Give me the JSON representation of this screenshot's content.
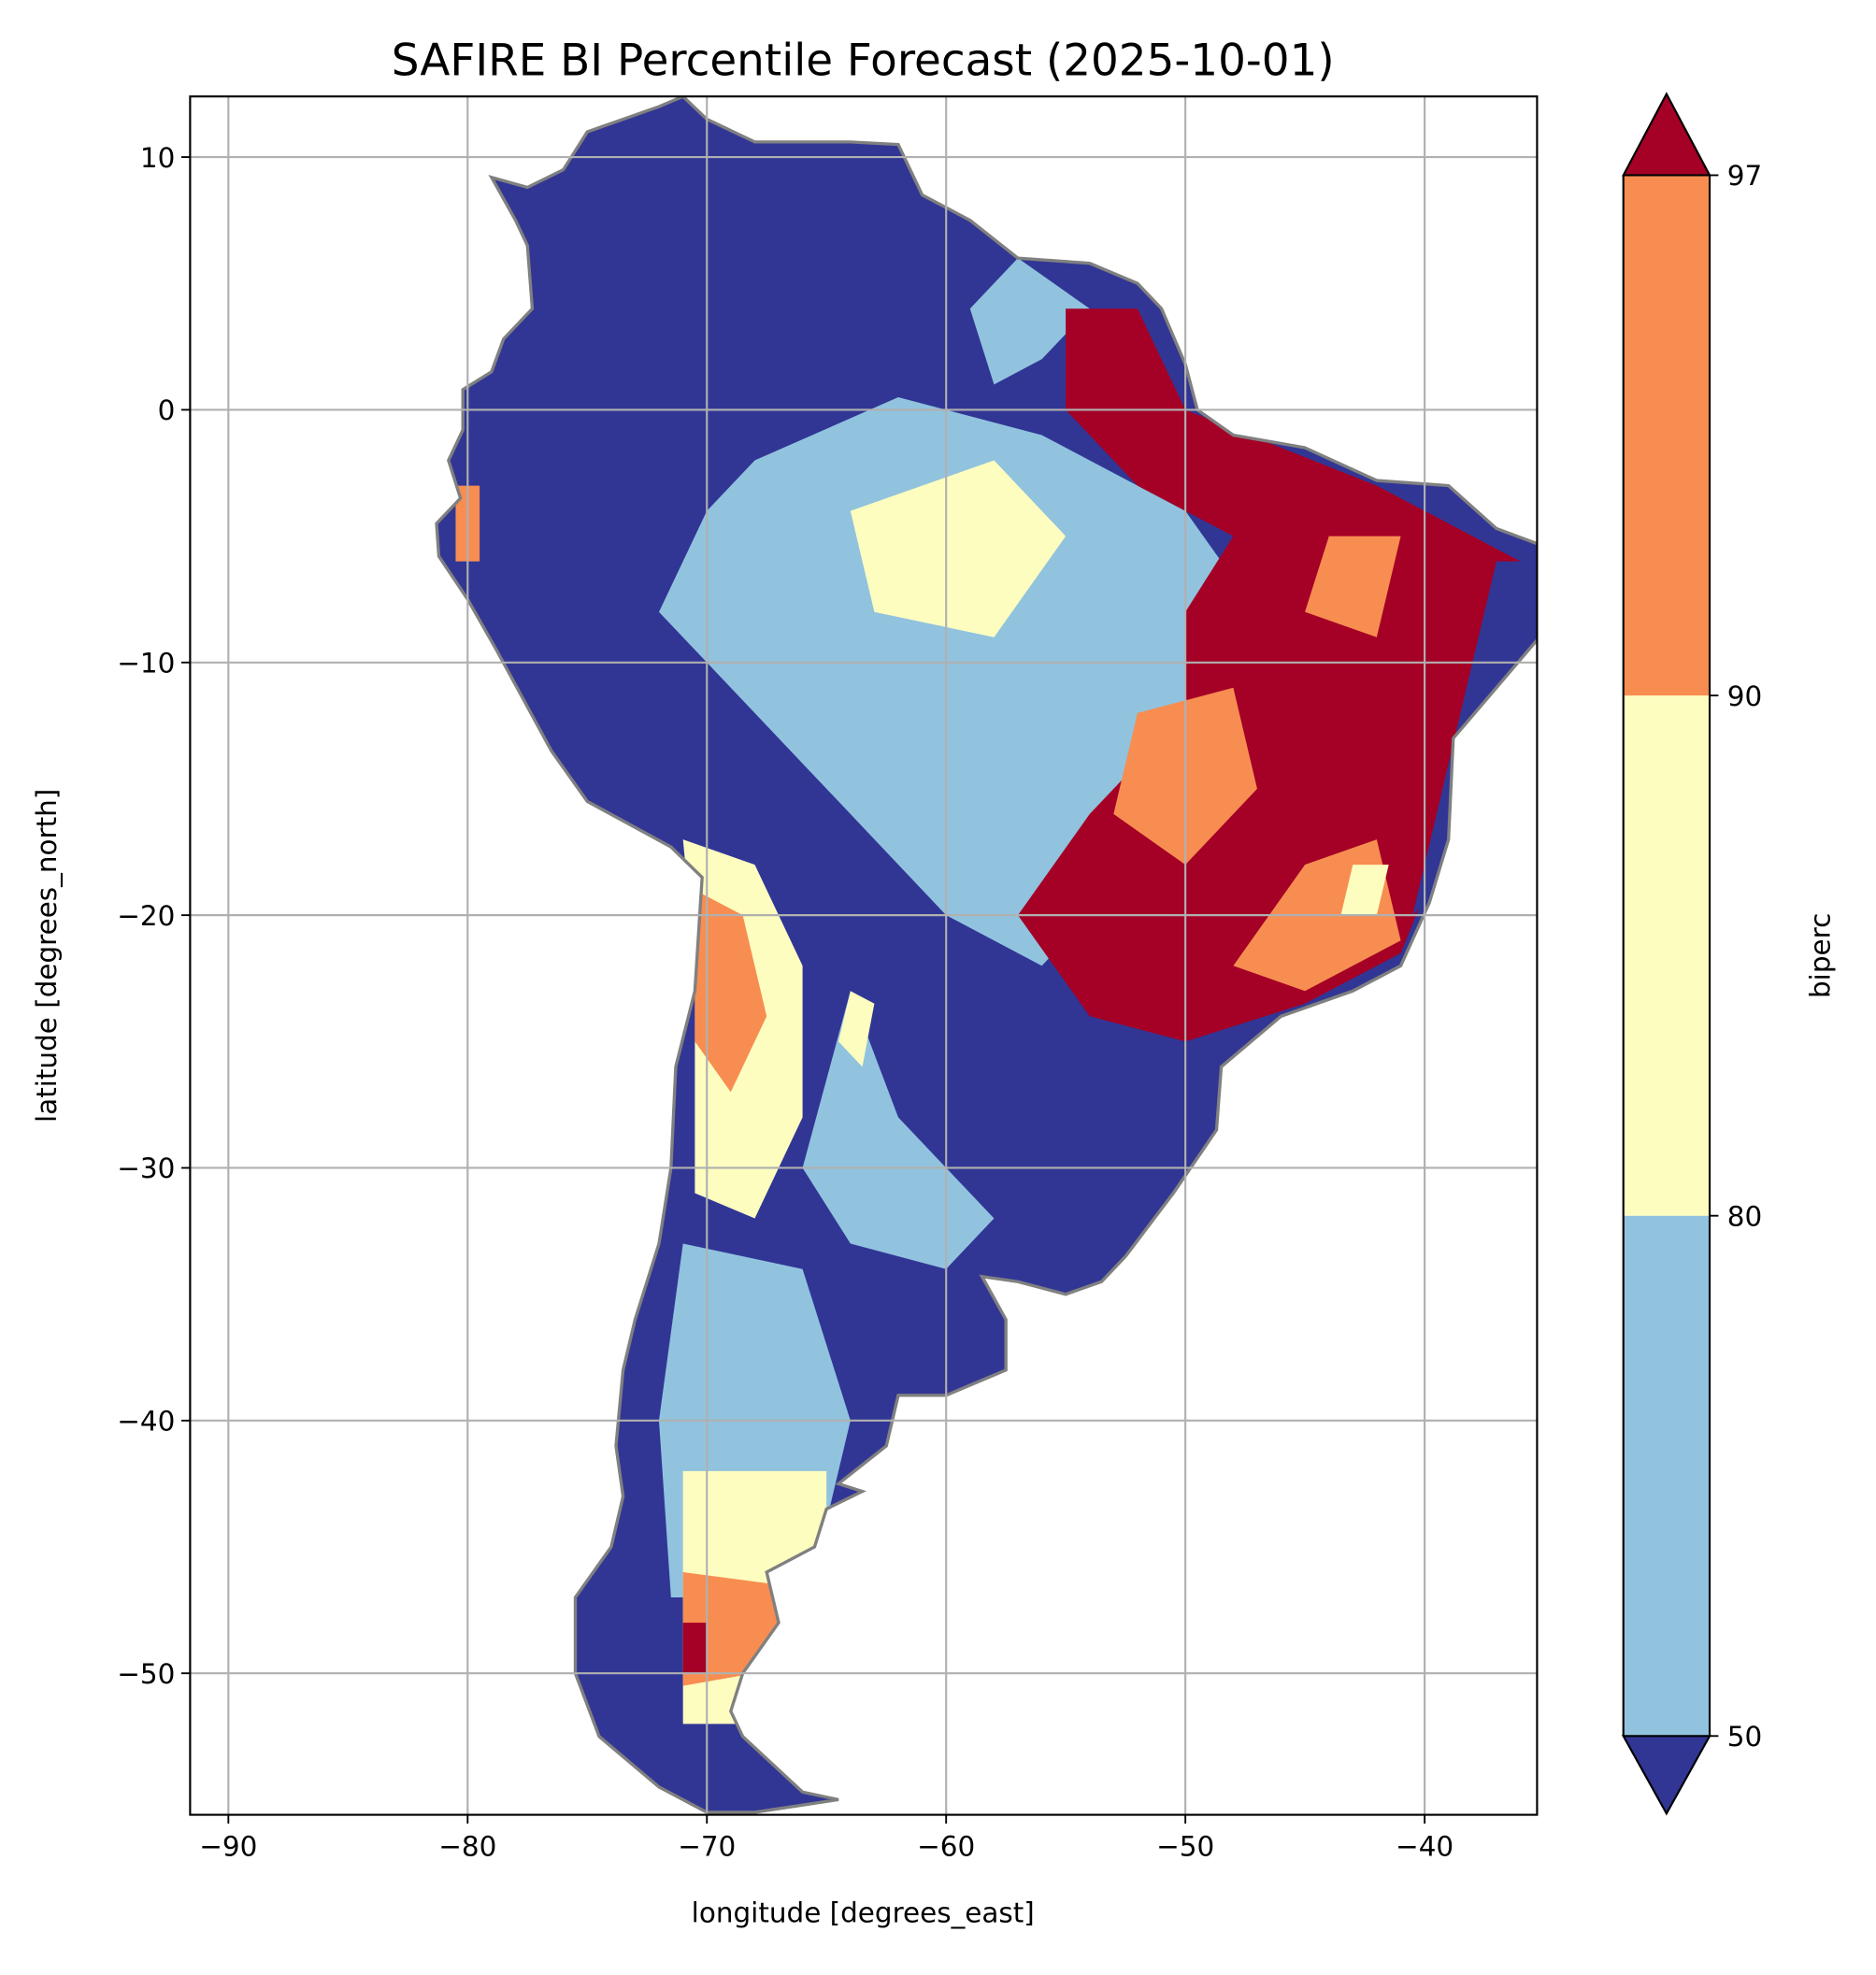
{
  "chart_data": {
    "type": "heatmap",
    "title": "SAFIRE BI Percentile Forecast (2025-10-01)",
    "xlabel": "longitude [degrees_east]",
    "ylabel": "latitude [degrees_north]",
    "xlim": [
      -91.6,
      -35.3
    ],
    "ylim": [
      -55.6,
      12.4
    ],
    "xticks": [
      -90,
      -80,
      -70,
      -60,
      -50,
      -40
    ],
    "yticks": [
      10,
      0,
      -10,
      -20,
      -30,
      -40,
      -50
    ],
    "xtick_labels": [
      "−90",
      "−80",
      "−70",
      "−60",
      "−50",
      "−40"
    ],
    "ytick_labels": [
      "10",
      "0",
      "−10",
      "−20",
      "−30",
      "−40",
      "−50"
    ],
    "grid": true,
    "region": "South America",
    "colorbar": {
      "label": "biperc",
      "levels": [
        50,
        80,
        90,
        97
      ],
      "tick_labels": [
        "50",
        "80",
        "90",
        "97"
      ],
      "extend": "both",
      "colors": {
        "below_50": "#313695",
        "50_80": "#91c3de",
        "80_90": "#fefdc0",
        "90_97": "#f88d51",
        "above_97": "#a50026"
      },
      "placement": "right"
    },
    "border_color": "#808080"
  }
}
